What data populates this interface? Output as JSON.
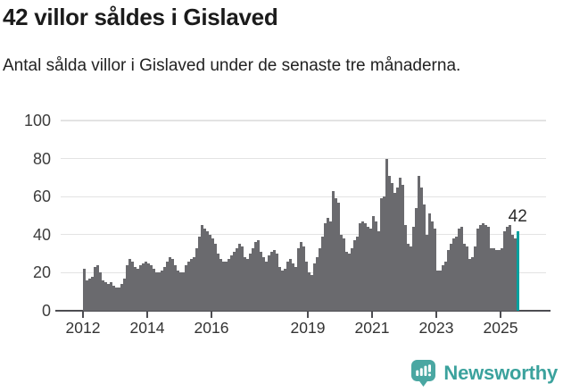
{
  "header": {
    "title": "42 villor såldes i Gislaved",
    "subtitle": "Antal sålda villor i Gislaved under de senaste tre månaderna."
  },
  "chart_data": {
    "type": "bar",
    "title": "42 villor såldes i Gislaved",
    "subtitle": "Antal sålda villor i Gislaved under de senaste tre månaderna.",
    "x_start": "2012-01",
    "x_end": "2025-07",
    "x_tick_labels": [
      "2012",
      "2014",
      "2016",
      "2019",
      "2021",
      "2023",
      "2025"
    ],
    "x_tick_years": [
      2012,
      2014,
      2016,
      2019,
      2021,
      2023,
      2025
    ],
    "y_ticks": [
      0,
      20,
      40,
      60,
      80,
      100
    ],
    "ylim": [
      0,
      100
    ],
    "grid": true,
    "legend": "none",
    "values": [
      22,
      16,
      17,
      18,
      23,
      24,
      20,
      16,
      15,
      14,
      15,
      13,
      12,
      12,
      14,
      17,
      24,
      27,
      26,
      23,
      22,
      24,
      25,
      26,
      25,
      24,
      22,
      20,
      20,
      21,
      23,
      26,
      28,
      27,
      24,
      21,
      20,
      20,
      24,
      26,
      27,
      28,
      33,
      39,
      45,
      43,
      42,
      40,
      38,
      35,
      30,
      27,
      26,
      26,
      27,
      29,
      31,
      33,
      35,
      34,
      28,
      27,
      30,
      33,
      36,
      37,
      31,
      28,
      26,
      29,
      31,
      32,
      30,
      23,
      21,
      22,
      26,
      27,
      25,
      23,
      33,
      36,
      34,
      26,
      20,
      19,
      25,
      28,
      33,
      39,
      46,
      49,
      47,
      63,
      59,
      57,
      40,
      38,
      31,
      30,
      33,
      37,
      39,
      46,
      47,
      46,
      44,
      43,
      50,
      47,
      42,
      59,
      60,
      80,
      71,
      67,
      62,
      65,
      70,
      66,
      45,
      35,
      34,
      44,
      54,
      71,
      65,
      56,
      40,
      51,
      47,
      43,
      21,
      21,
      24,
      26,
      32,
      35,
      38,
      39,
      43,
      44,
      35,
      34,
      27,
      28,
      34,
      43,
      45,
      46,
      45,
      44,
      33,
      33,
      32,
      32,
      33,
      42,
      44,
      45,
      40,
      38,
      42
    ],
    "highlight_last_bar": true,
    "last_value_label": "42",
    "bar_color": "#6a6a6e",
    "highlight_color": "#00a09e",
    "grid_color": "#e3e3e3",
    "axis_color": "#4d4d52"
  },
  "footer": {
    "brand": "Newsworthy",
    "logo_icon": "newsworthy-chart-bubble-icon",
    "brand_color": "#3ba29d",
    "logo_color": "#4aa7a2"
  }
}
